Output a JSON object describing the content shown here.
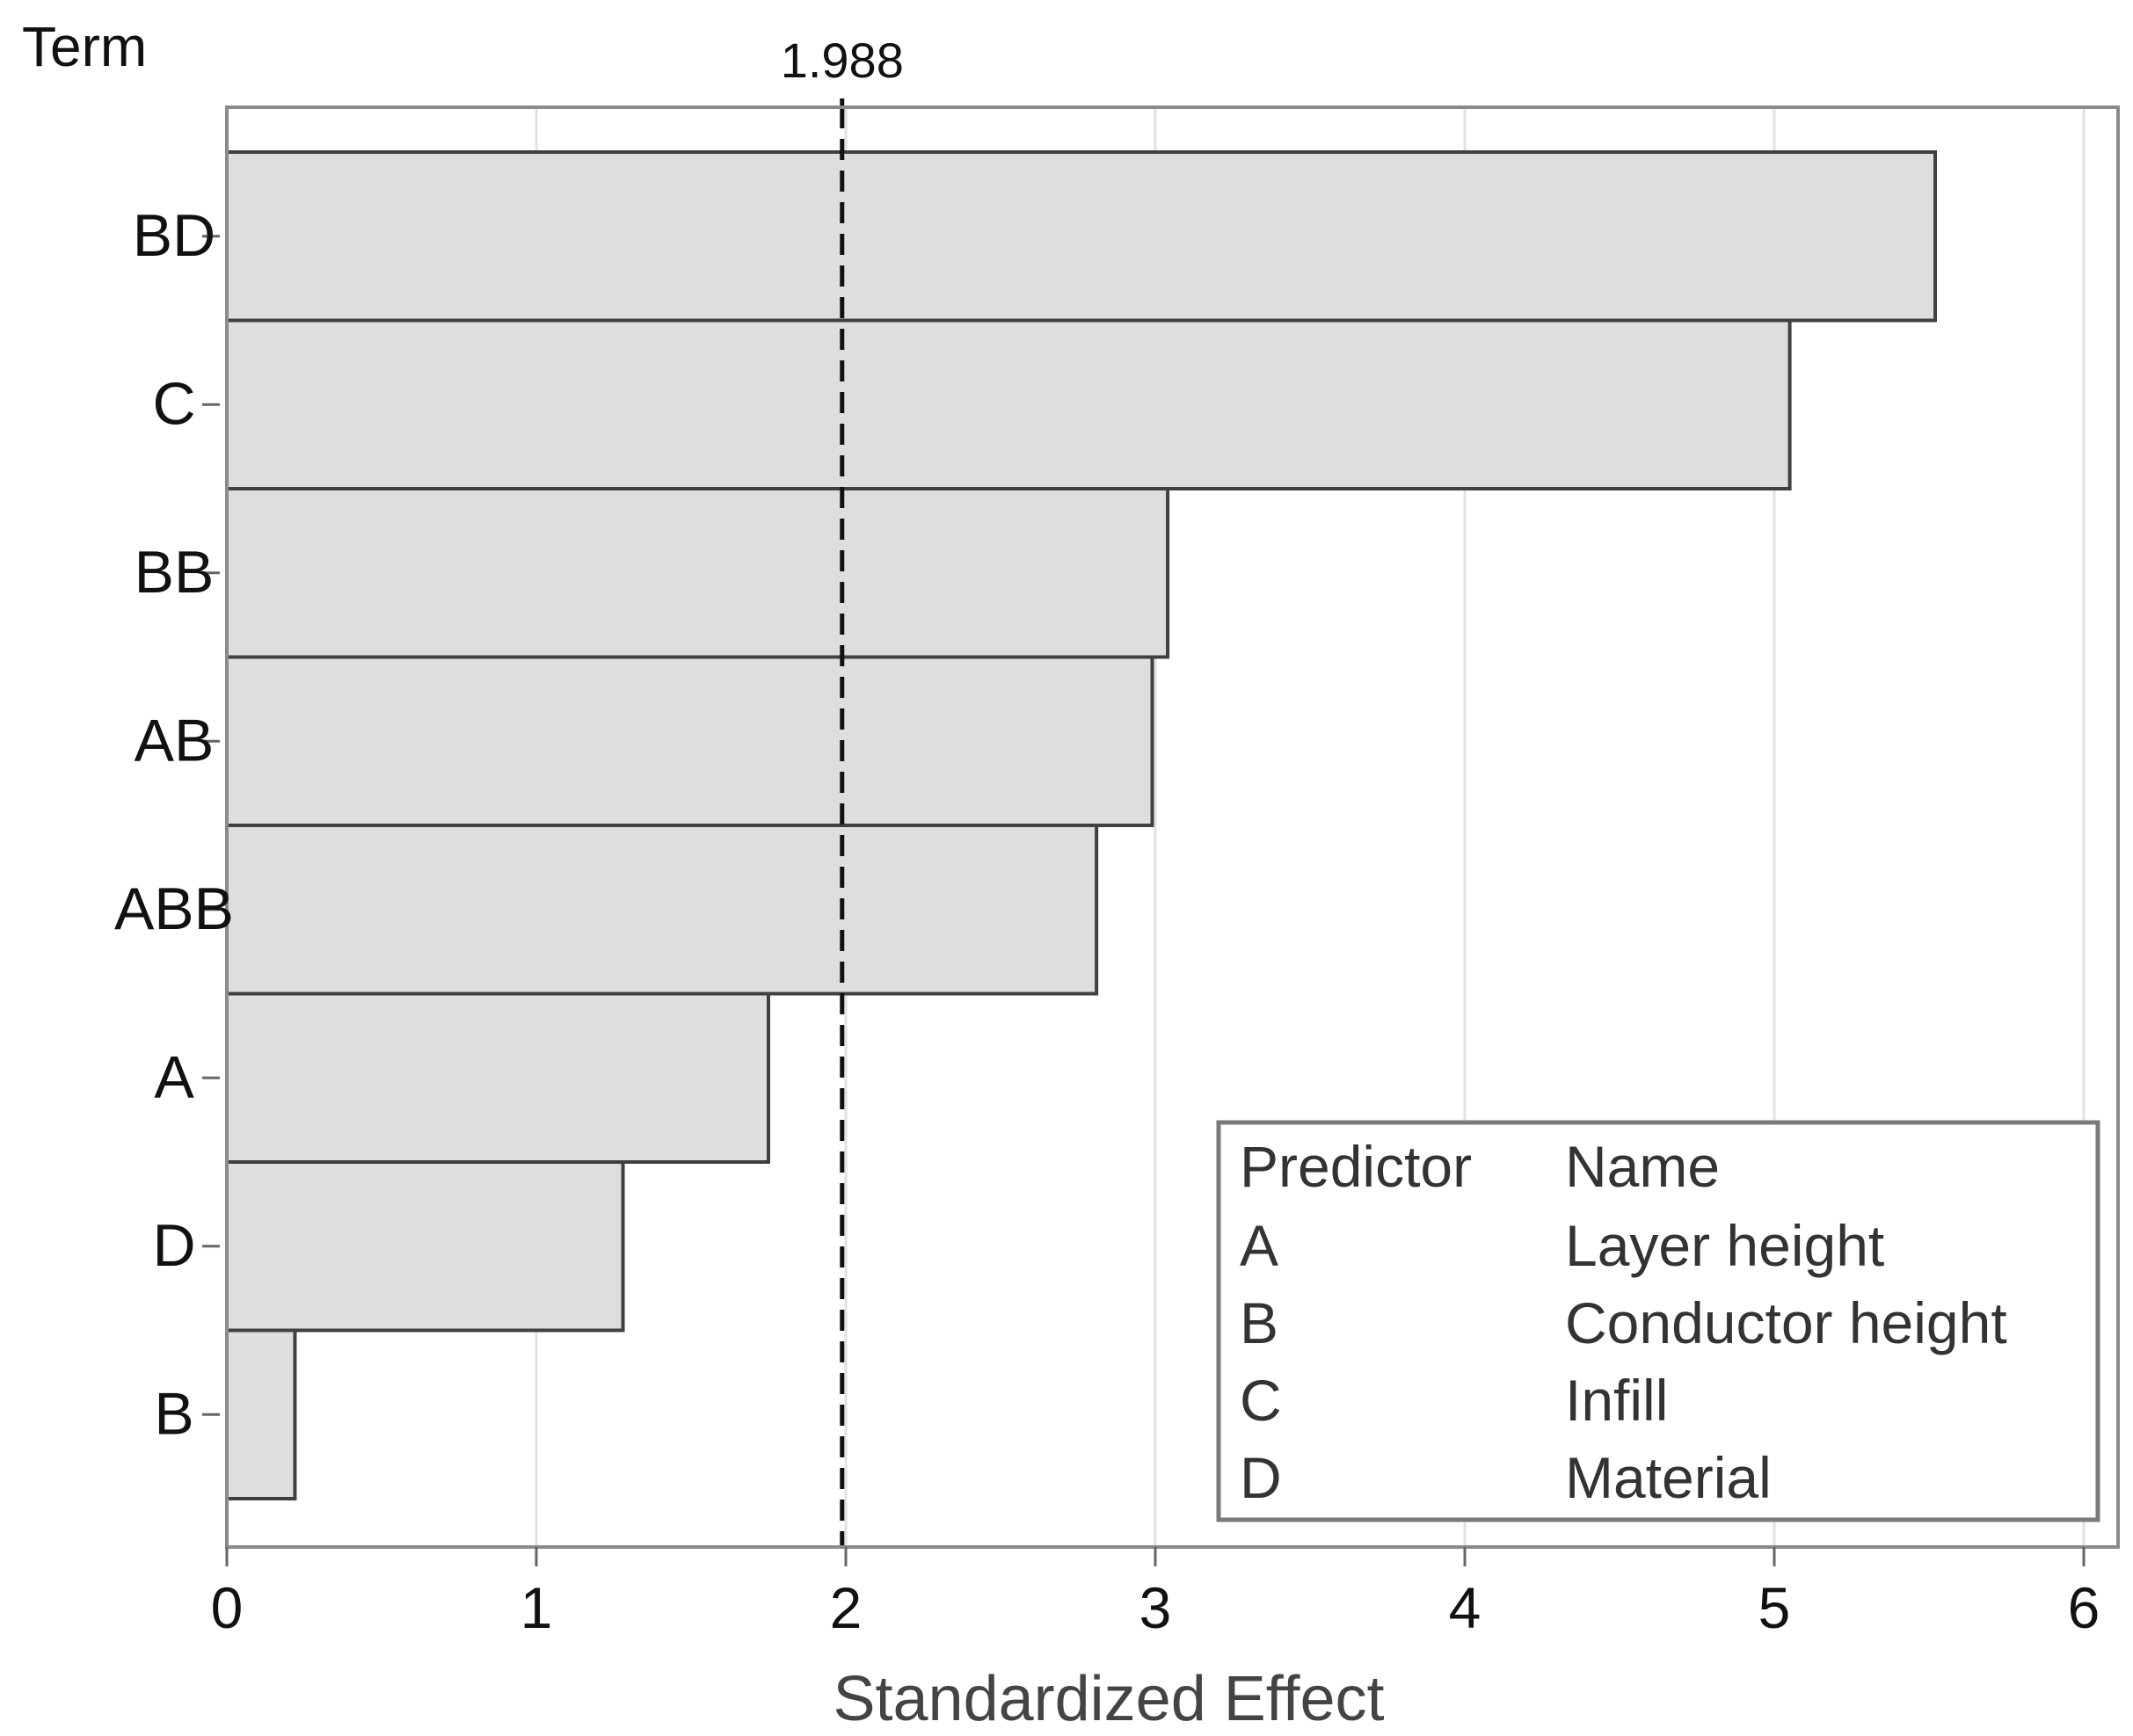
{
  "chart_data": {
    "type": "bar",
    "orientation": "horizontal",
    "title": "",
    "ylabel": "Term",
    "xlabel": "Standardized Effect",
    "categories": [
      "BD",
      "C",
      "BB",
      "AB",
      "ABB",
      "A",
      "D",
      "B"
    ],
    "values": [
      5.52,
      5.05,
      3.04,
      2.99,
      2.81,
      1.75,
      1.28,
      0.22
    ],
    "xlim": [
      0,
      6
    ],
    "xticks": [
      "0",
      "1",
      "2",
      "3",
      "4",
      "5",
      "6"
    ],
    "grid": "vertical",
    "reference_line": {
      "value": 1.988,
      "label": "1.988",
      "style": "dashed"
    },
    "bar_color": "#dedede",
    "bar_edge_color": "#404040",
    "legend": {
      "placement": "bottom-right",
      "header": {
        "predictor": "Predictor",
        "name": "Name"
      },
      "rows": [
        {
          "predictor": "A",
          "name": "Layer height"
        },
        {
          "predictor": "B",
          "name": "Conductor height"
        },
        {
          "predictor": "C",
          "name": "Infill"
        },
        {
          "predictor": "D",
          "name": "Material"
        }
      ]
    }
  }
}
